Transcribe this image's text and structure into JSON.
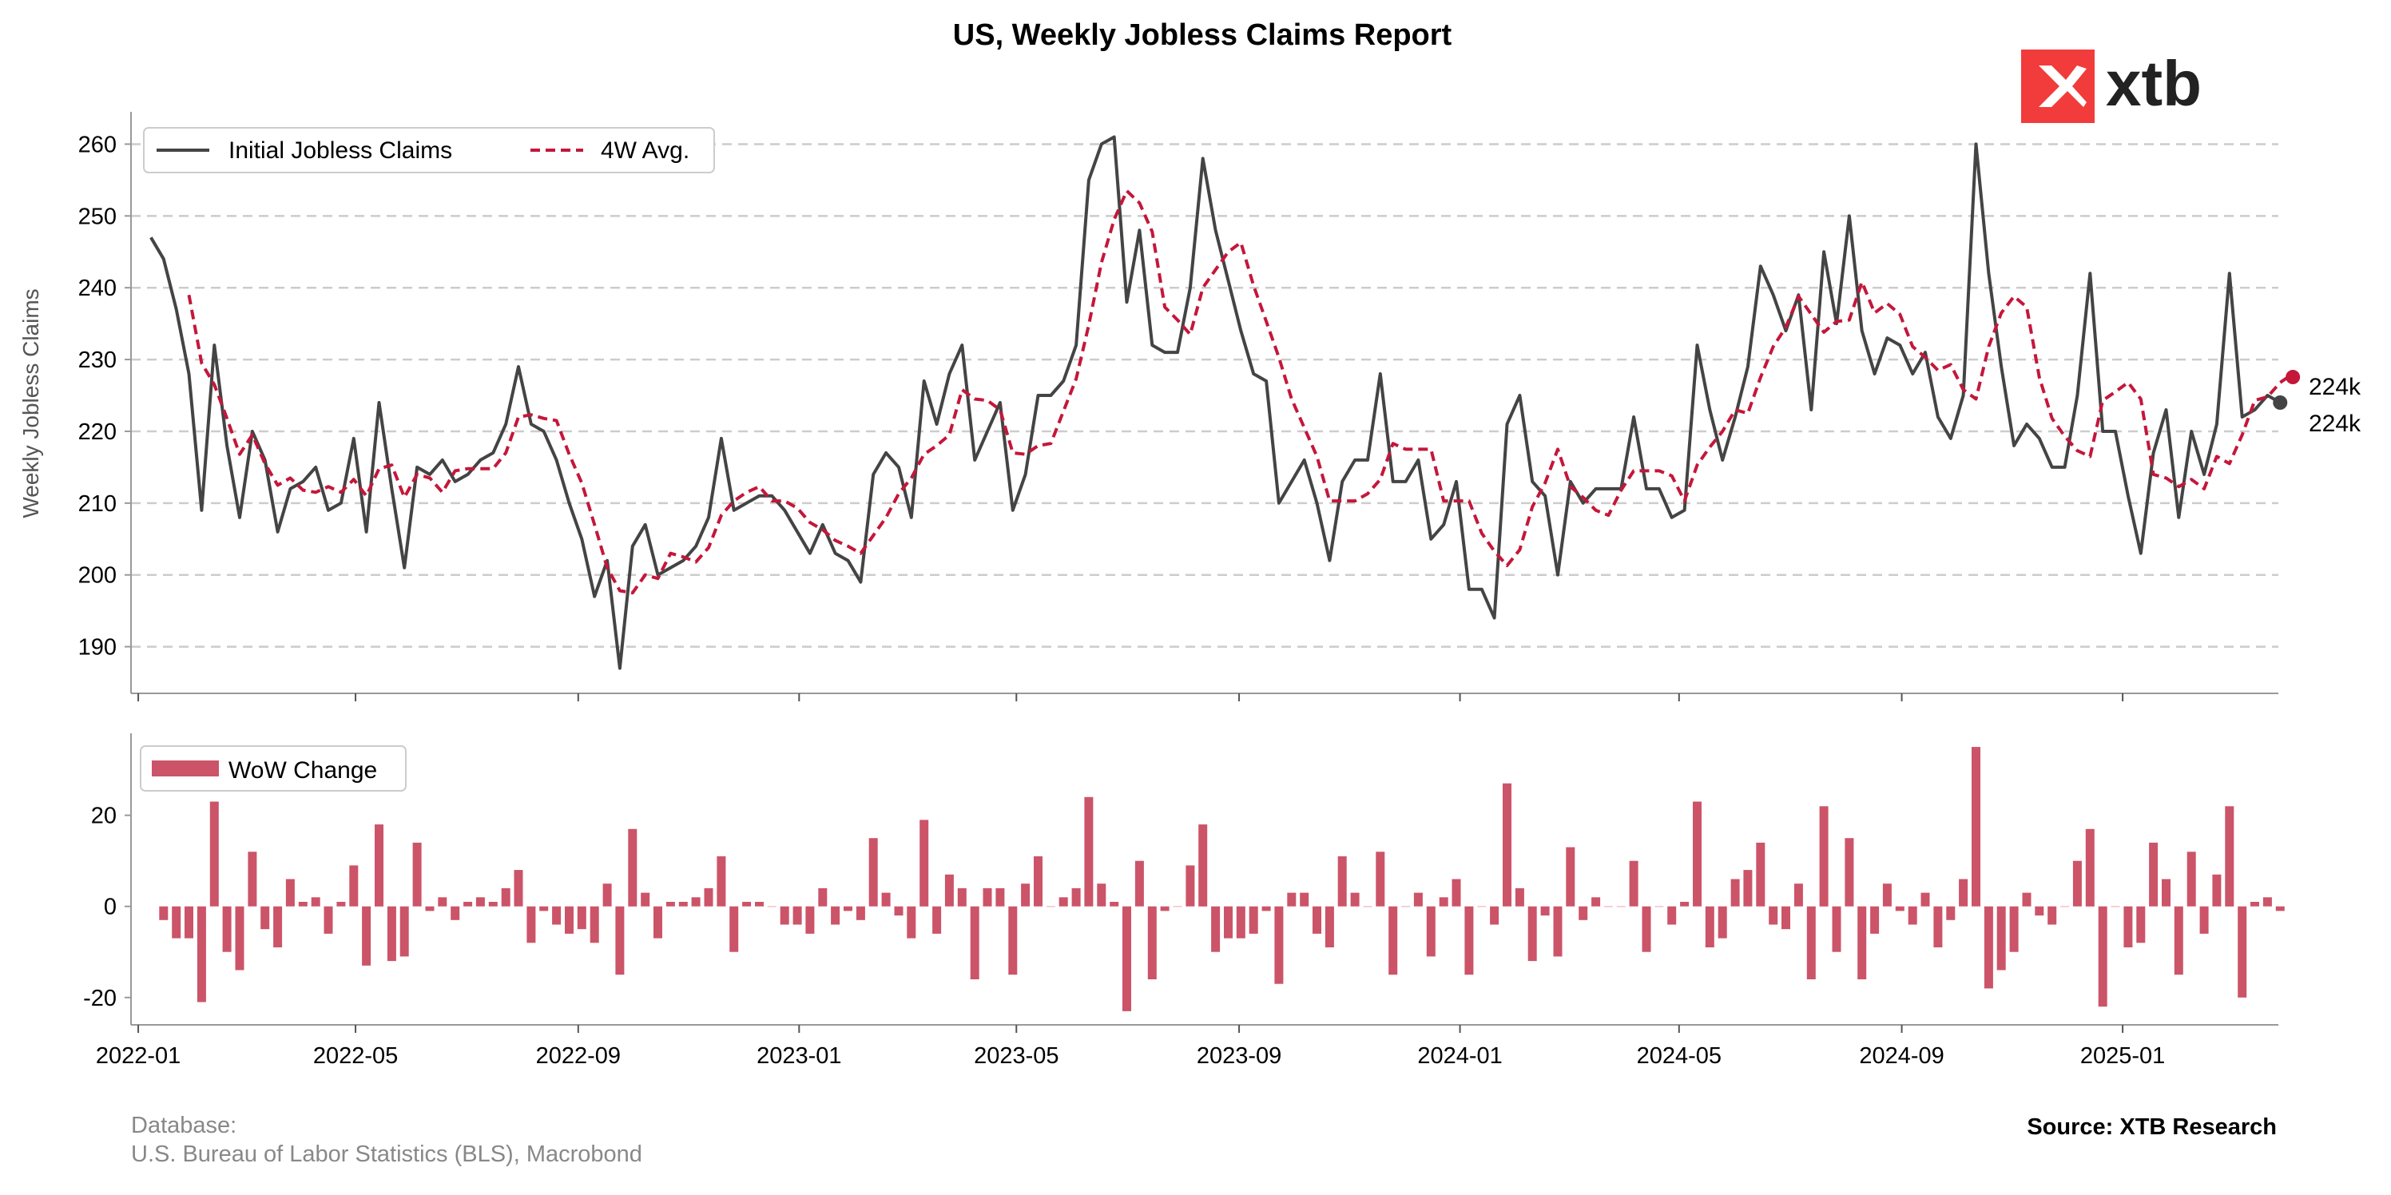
{
  "title": "US, Weekly Jobless Claims Report",
  "logo_text": "xtb",
  "footer": {
    "database_label": "Database:",
    "database_sources": "U.S. Bureau of Labor Statistics (BLS), Macrobond",
    "source": "Source: XTB Research"
  },
  "colors": {
    "claims_line": "#444444",
    "avg_line": "#c4173a",
    "bars": "#cc5468",
    "grid": "#cccccc",
    "logo": "#f23b3b"
  },
  "chart_data": [
    {
      "type": "line",
      "ylabel": "Weekly Jobless Claims",
      "ylim": [
        183.5,
        264.5
      ],
      "xlim": [
        "2021-12-28",
        "2025-03-28"
      ],
      "grid": true,
      "legend_position": "top-left",
      "x_ticks": [
        "2022-01",
        "2022-05",
        "2022-09",
        "2023-01",
        "2023-05",
        "2023-09",
        "2024-01",
        "2024-05",
        "2024-09",
        "2025-01"
      ],
      "y_ticks": [
        190,
        200,
        210,
        220,
        230,
        240,
        250,
        260
      ],
      "start_date": "2022-01-08",
      "end_labels": [
        "224k",
        "224k"
      ],
      "series": [
        {
          "name": "Initial Jobless Claims",
          "style": "solid",
          "values": [
            247,
            244,
            237,
            228,
            209,
            232,
            218,
            208,
            220,
            216,
            206,
            212,
            213,
            215,
            209,
            210,
            219,
            206,
            224,
            212,
            201,
            215,
            214,
            216,
            213,
            214,
            216,
            217,
            221,
            229,
            221,
            220,
            216,
            210,
            205,
            197,
            202,
            187,
            204,
            207,
            200,
            201,
            202,
            204,
            208,
            219,
            209,
            210,
            211,
            211,
            209,
            206,
            203,
            207,
            203,
            202,
            199,
            214,
            217,
            215,
            208,
            227,
            221,
            228,
            232,
            216,
            220,
            224,
            209,
            214,
            225,
            225,
            227,
            232,
            255,
            260,
            261,
            238,
            248,
            232,
            231,
            231,
            240,
            258,
            248,
            241,
            234,
            228,
            227,
            210,
            213,
            216,
            210,
            202,
            213,
            216,
            216,
            228,
            213,
            213,
            216,
            205,
            207,
            213,
            198,
            198,
            194,
            221,
            225,
            213,
            211,
            200,
            213,
            210,
            212,
            212,
            212,
            222,
            212,
            212,
            208,
            209,
            232,
            223,
            216,
            222,
            229,
            243,
            239,
            234,
            239,
            223,
            245,
            235,
            250,
            234,
            228,
            233,
            232,
            228,
            231,
            222,
            219,
            225,
            260,
            242,
            229,
            218,
            221,
            219,
            215,
            215,
            225,
            242,
            220,
            220,
            211,
            203,
            217,
            223,
            208,
            220,
            214,
            221,
            242,
            222,
            223,
            225,
            224
          ],
          "color": "#444444"
        },
        {
          "name": "4W Avg.",
          "style": "dashed",
          "values": [
            null,
            null,
            null,
            239,
            229.5,
            226.5,
            221.8,
            216.8,
            219.5,
            215.5,
            212.5,
            213.5,
            211.8,
            211.5,
            212.3,
            211.5,
            213.3,
            211,
            214.8,
            215.3,
            210.8,
            214,
            213.5,
            211.5,
            214.5,
            214.8,
            214.8,
            214.8,
            217,
            222,
            222.3,
            221.8,
            221.5,
            216.8,
            212.8,
            207,
            201,
            197.8,
            197.5,
            200,
            199.5,
            203,
            202.5,
            201.8,
            203.8,
            208.3,
            210.3,
            211.5,
            212.3,
            210.3,
            210.3,
            209.3,
            207.3,
            206.3,
            204.8,
            204,
            203,
            205.5,
            208,
            211.3,
            213.5,
            216.8,
            218,
            219.5,
            225.8,
            224.5,
            224.3,
            223,
            217,
            216.8,
            218,
            218.3,
            222.8,
            227.3,
            234.8,
            243.5,
            249.5,
            253.5,
            251.8,
            247.8,
            237.3,
            235.5,
            233.5,
            240,
            242.5,
            245,
            246.3,
            240.3,
            235.3,
            230.3,
            224.5,
            220.5,
            216.5,
            210.3,
            210.3,
            210.3,
            211.3,
            213.3,
            218.3,
            217.5,
            217.5,
            217.5,
            210.3,
            210.3,
            210.3,
            205.8,
            203.3,
            201.3,
            203.5,
            209.5,
            212.8,
            217.5,
            212.3,
            210.8,
            209,
            208.3,
            211.8,
            214.5,
            214.5,
            214.5,
            213.8,
            210.3,
            215.3,
            217.8,
            220,
            223,
            222.5,
            227.5,
            231.8,
            234.5,
            238.8,
            236.3,
            233.8,
            235.3,
            235.5,
            240.8,
            236.5,
            237.8,
            236.3,
            231.8,
            230.3,
            228.5,
            229.3,
            225.8,
            224.5,
            231.8,
            236.5,
            238.8,
            237.3,
            227.5,
            221.8,
            219.3,
            217.3,
            216.5,
            224.3,
            225.5,
            226.8,
            224.5,
            214,
            213.5,
            212.3,
            213.3,
            212,
            216.5,
            215.5,
            219.5,
            224.3,
            224.8,
            226.8,
            228
          ]
        }
      ]
    },
    {
      "type": "bar",
      "ylim": [
        -26,
        38
      ],
      "x_ticks": [
        "2022-01",
        "2022-05",
        "2022-09",
        "2023-01",
        "2023-05",
        "2023-09",
        "2024-01",
        "2024-05",
        "2024-09",
        "2025-01"
      ],
      "y_ticks": [
        -20,
        0,
        20
      ],
      "legend_position": "top-left",
      "grid": false,
      "series": [
        {
          "name": "WoW Change",
          "values": [
            -3,
            -7,
            -7,
            -21,
            23,
            -10,
            -14,
            12,
            -5,
            -9,
            6,
            1,
            2,
            -6,
            1,
            9,
            -13,
            18,
            -12,
            -11,
            14,
            -1,
            2,
            -3,
            1,
            2,
            1,
            4,
            8,
            -8,
            -1,
            -4,
            -6,
            -5,
            -8,
            5,
            -15,
            17,
            3,
            -7,
            1,
            1,
            2,
            4,
            11,
            -10,
            1,
            1,
            0,
            -4,
            -4,
            -6,
            4,
            -4,
            -1,
            -3,
            15,
            3,
            -2,
            -7,
            19,
            -6,
            7,
            4,
            -16,
            4,
            4,
            -15,
            5,
            11,
            0,
            2,
            4,
            24,
            5,
            1,
            -23,
            10,
            -16,
            -1,
            0,
            9,
            18,
            -10,
            -7,
            -7,
            -6,
            -1,
            -17,
            3,
            3,
            -6,
            -9,
            11,
            3,
            0,
            12,
            -15,
            0,
            3,
            -11,
            2,
            6,
            -15,
            0,
            -4,
            27,
            4,
            -12,
            -2,
            -11,
            13,
            -3,
            2,
            0,
            0,
            10,
            -10,
            0,
            -4,
            1,
            23,
            -9,
            -7,
            6,
            8,
            14,
            -4,
            -5,
            5,
            -16,
            22,
            -10,
            15,
            -16,
            -6,
            5,
            -1,
            -4,
            3,
            -9,
            -3,
            6,
            35,
            -18,
            -14,
            -10,
            3,
            -2,
            -4,
            0,
            10,
            17,
            -22,
            0,
            -9,
            -8,
            14,
            6,
            -15,
            12,
            -6,
            7,
            22,
            -20,
            1,
            2,
            -1
          ],
          "color": "#cc5468"
        }
      ]
    }
  ]
}
